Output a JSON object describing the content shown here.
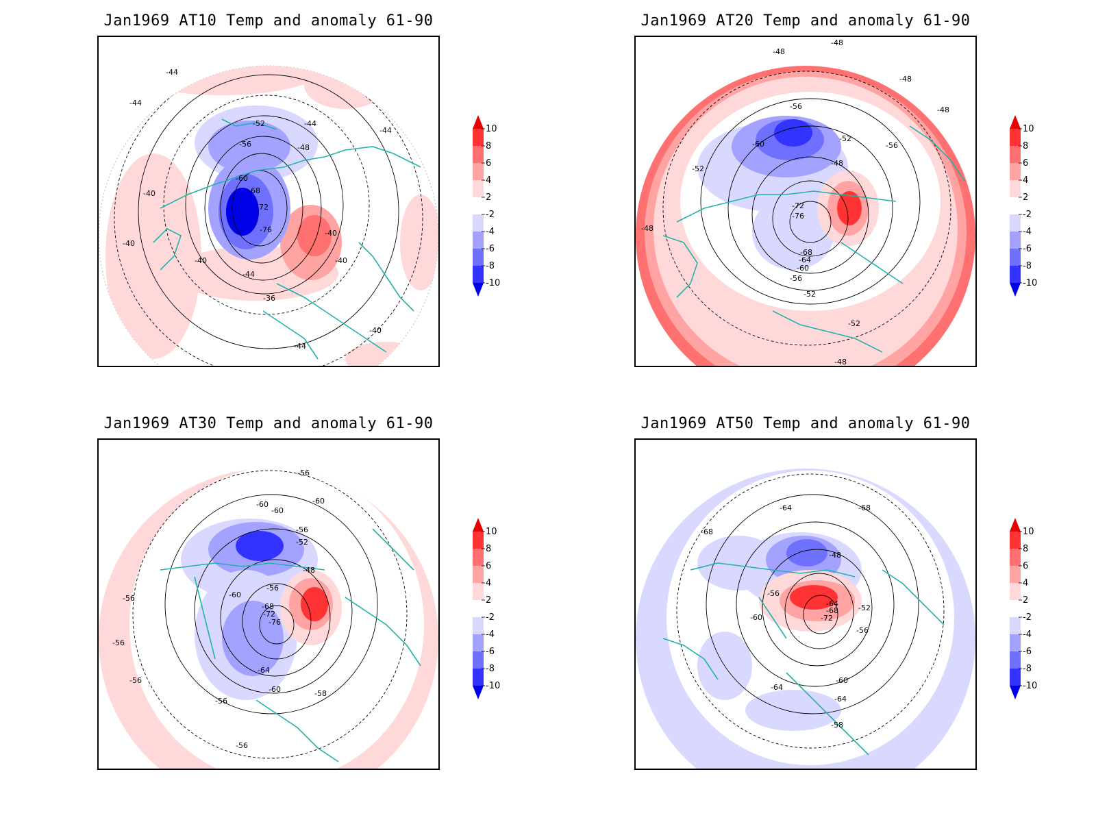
{
  "panels": [
    {
      "title": "Jan1969 AT10 Temp and anomaly 61-90",
      "labels": [
        "-44",
        "-44",
        "-52",
        "-56",
        "-48",
        "-60",
        "-68",
        "-72",
        "-76",
        "-40",
        "-40",
        "-40",
        "-44",
        "-36",
        "-40",
        "-40",
        "-44",
        "-44",
        "-44",
        "-40"
      ]
    },
    {
      "title": "Jan1969 AT20 Temp and anomaly 61-90",
      "labels": [
        "-48",
        "-48",
        "-48",
        "-48",
        "-56",
        "-56",
        "-60",
        "-52",
        "-52",
        "-48",
        "-72",
        "-76",
        "-68",
        "-64",
        "-60",
        "-56",
        "-52",
        "-52",
        "-48",
        "-48"
      ]
    },
    {
      "title": "Jan1969 AT30 Temp and anomaly 61-90",
      "labels": [
        "-56",
        "-60",
        "-60",
        "-60",
        "-56",
        "-52",
        "-48",
        "-56",
        "-60",
        "-68",
        "-72",
        "-76",
        "-64",
        "-60",
        "-56",
        "-58",
        "-56",
        "-56",
        "-56",
        "-56"
      ]
    },
    {
      "title": "Jan1969 AT50 Temp and anomaly 61-90",
      "labels": [
        "-64",
        "-68",
        "-68",
        "-48",
        "-56",
        "-64",
        "-68",
        "-72",
        "-52",
        "-60",
        "-56",
        "-60",
        "-64",
        "-64",
        "-58"
      ]
    }
  ],
  "colorbar": {
    "levels": [
      "10",
      "8",
      "6",
      "4",
      "2",
      "-2",
      "-4",
      "-6",
      "-8",
      "-10"
    ],
    "colors": [
      "#e60000",
      "#ff3333",
      "#ff7070",
      "#ffa3a3",
      "#ffd9d9",
      "#ffffff",
      "#d9d9ff",
      "#a3a3ff",
      "#7070ff",
      "#3333ff",
      "#0000e6"
    ]
  }
}
